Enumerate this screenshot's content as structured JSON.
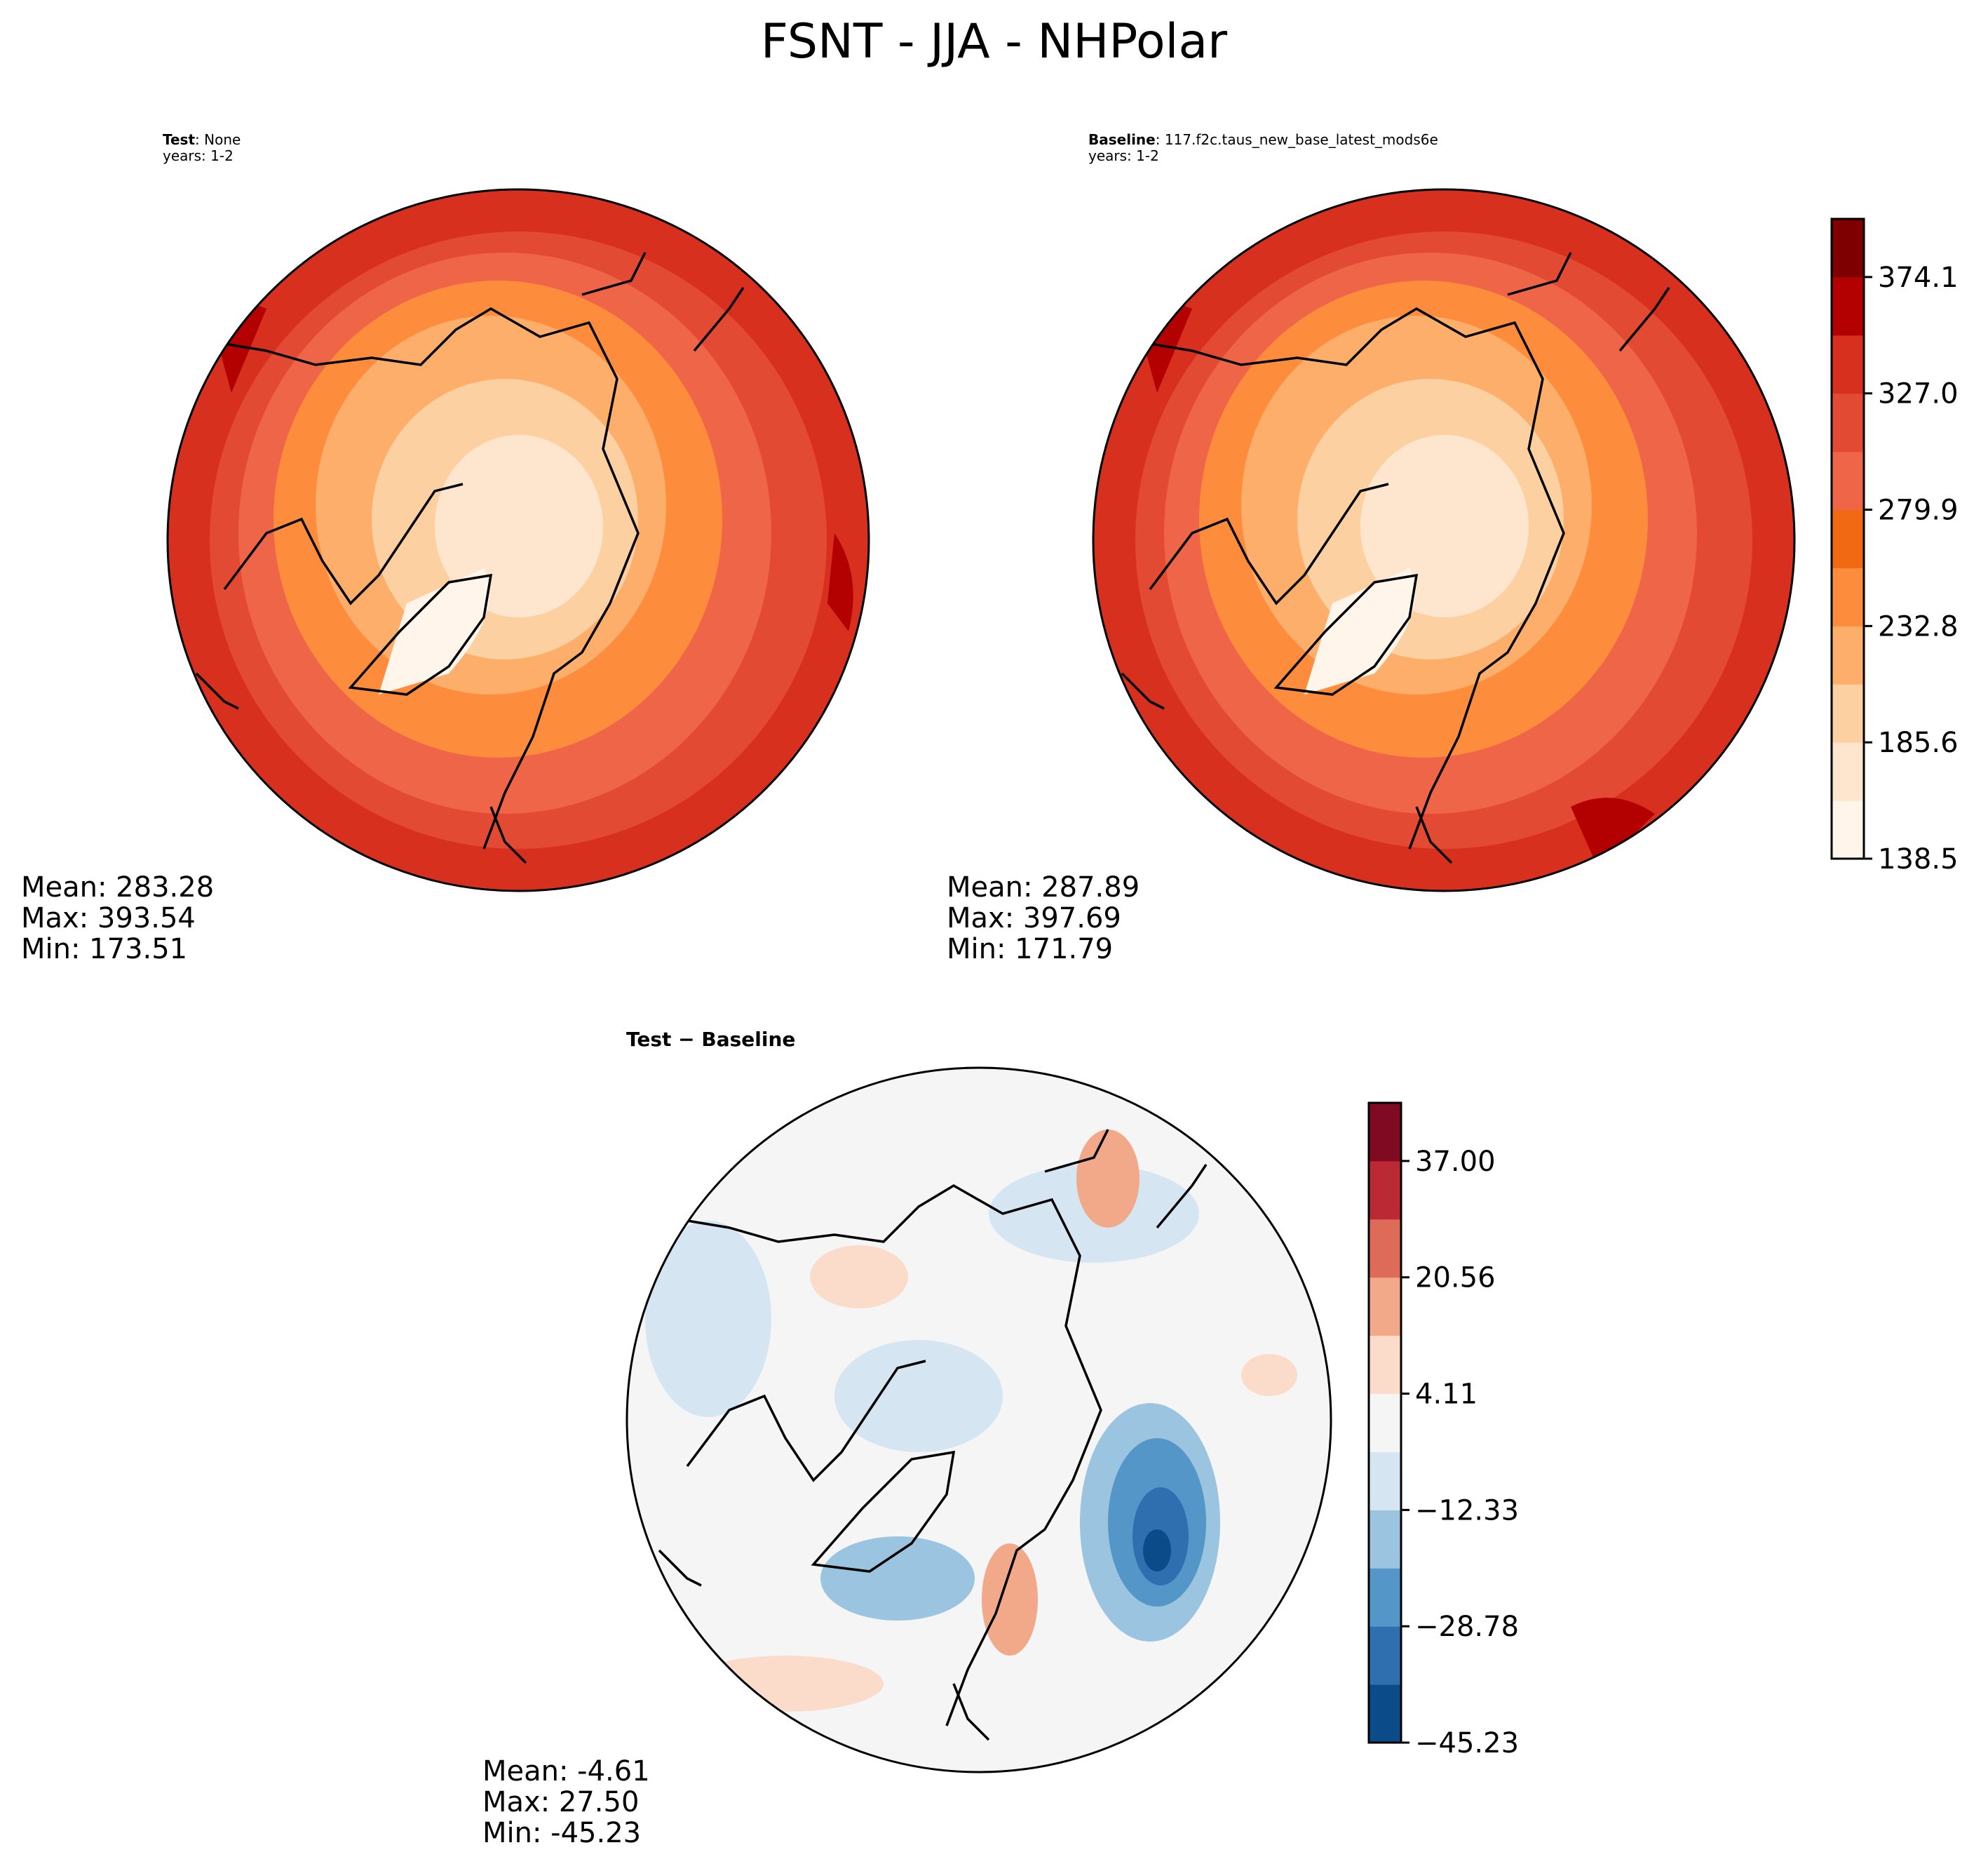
{
  "title": "FSNT - JJA - NHPolar",
  "chart_data": [
    {
      "type": "filled-contour-map",
      "projection": "north-polar-stereographic",
      "panel_label": "Test",
      "panel_value": "None",
      "years": "years: 1-2",
      "stats": {
        "mean": "Mean: 283.28",
        "max": "Max: 393.54",
        "min": "Min: 173.51"
      },
      "colormap": "OrRd",
      "levels": [
        138.5,
        162.1,
        185.6,
        209.2,
        232.8,
        256.4,
        279.9,
        303.5,
        327.0,
        350.6,
        374.1,
        397.7
      ]
    },
    {
      "type": "filled-contour-map",
      "projection": "north-polar-stereographic",
      "panel_label": "Baseline",
      "panel_value": "117.f2c.taus_new_base_latest_mods6e",
      "years": "years: 1-2",
      "stats": {
        "mean": "Mean: 287.89",
        "max": "Max: 397.69",
        "min": "Min: 171.79"
      },
      "colormap": "OrRd",
      "levels": [
        138.5,
        162.1,
        185.6,
        209.2,
        232.8,
        256.4,
        279.9,
        303.5,
        327.0,
        350.6,
        374.1,
        397.7
      ],
      "colorbar_ticks": [
        "374.1",
        "327.0",
        "279.9",
        "232.8",
        "185.6",
        "138.5"
      ],
      "colors": [
        "#fff5eb",
        "#fee6ce",
        "#fdd0a2",
        "#fdae6b",
        "#fd8d3c",
        "#f16913",
        "#ef6548",
        "#e34a33",
        "#d7301f",
        "#b30000",
        "#7f0000"
      ]
    },
    {
      "type": "filled-contour-map",
      "projection": "north-polar-stereographic",
      "panel_label": "Test − Baseline",
      "stats": {
        "mean": "Mean: -4.61",
        "max": "Max: 27.50",
        "min": "Min: -45.23"
      },
      "colormap": "RdBu_r",
      "levels": [
        -45.23,
        -37.01,
        -28.78,
        -20.56,
        -12.33,
        -4.11,
        4.11,
        12.33,
        20.56,
        28.78,
        37.0,
        45.23
      ],
      "colorbar_ticks": [
        "37.00",
        "20.56",
        "4.11",
        "−12.33",
        "−28.78",
        "−45.23"
      ],
      "colors": [
        "#0b4b8a",
        "#2f6fb0",
        "#5496c8",
        "#9ac4df",
        "#d5e6f2",
        "#f5f5f5",
        "#fbdccb",
        "#f2a98a",
        "#dd6b58",
        "#bb2a34",
        "#7f0a22"
      ]
    }
  ]
}
